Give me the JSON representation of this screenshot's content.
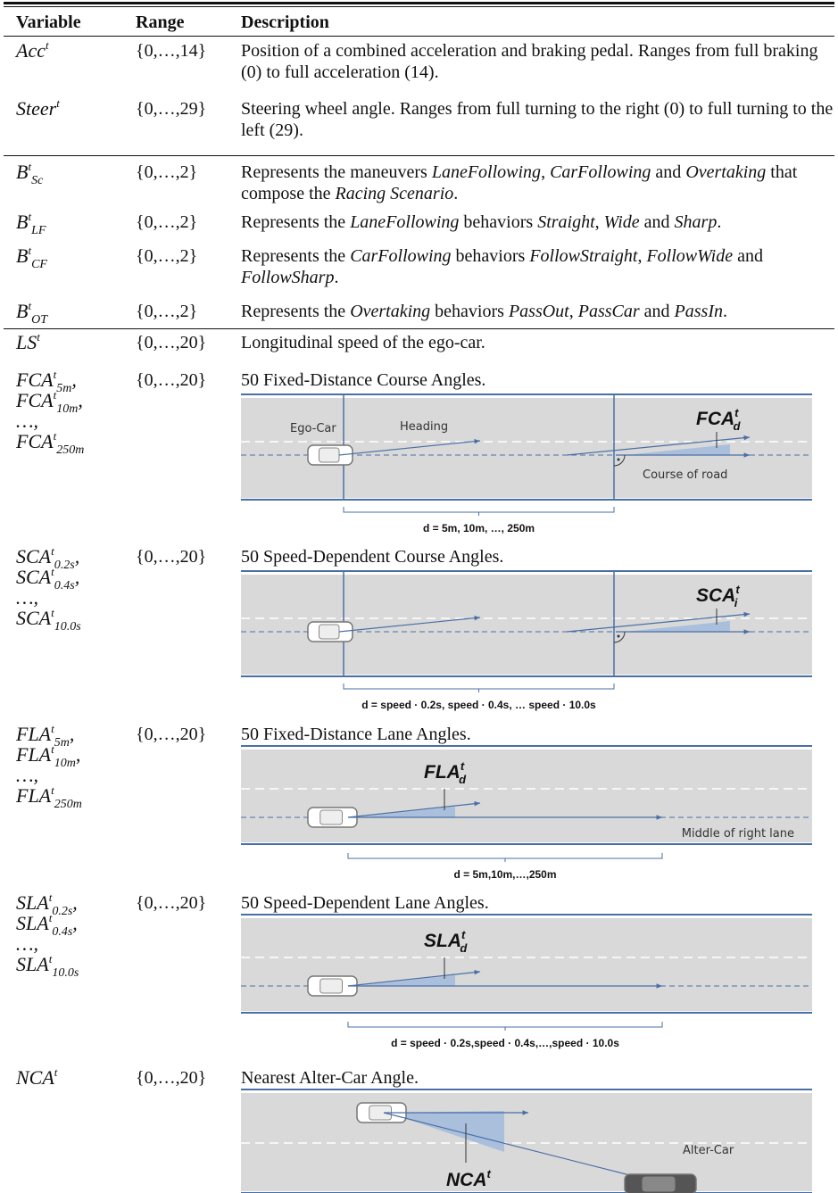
{
  "header": {
    "variable": "Variable",
    "range": "Range",
    "description": "Description"
  },
  "rows": [
    {
      "variable": [
        {
          "base": "Acc",
          "sup": "t"
        }
      ],
      "range": "{0,…,14}",
      "description": [
        {
          "text": "Position of a combined acceleration and braking pedal. Ranges from full braking (0) to full acceleration (14)."
        }
      ]
    },
    {
      "variable": [
        {
          "base": "Steer",
          "sup": "t"
        }
      ],
      "range": "{0,…,29}",
      "description": [
        {
          "text": "Steering wheel angle. Ranges from full turning to the right (0) to full turning to the left (29)."
        }
      ]
    },
    {
      "variable": [
        {
          "base": "B",
          "sup": "t",
          "sub": "Sc"
        }
      ],
      "range": "{0,…,2}",
      "description": [
        {
          "text": "Represents the maneuvers "
        },
        {
          "text": "LaneFollowing",
          "italic": true
        },
        {
          "text": ", "
        },
        {
          "text": "CarFollowing",
          "italic": true
        },
        {
          "text": " and "
        },
        {
          "text": "Overtaking",
          "italic": true
        },
        {
          "text": " that compose the "
        },
        {
          "text": "Racing Scenario",
          "italic": true
        },
        {
          "text": "."
        }
      ]
    },
    {
      "variable": [
        {
          "base": "B",
          "sup": "t",
          "sub": "LF"
        }
      ],
      "range": "{0,…,2}",
      "description": [
        {
          "text": "Represents the "
        },
        {
          "text": "LaneFollowing",
          "italic": true
        },
        {
          "text": " behaviors "
        },
        {
          "text": "Straight",
          "italic": true
        },
        {
          "text": ", "
        },
        {
          "text": "Wide",
          "italic": true
        },
        {
          "text": " and "
        },
        {
          "text": "Sharp",
          "italic": true
        },
        {
          "text": "."
        }
      ]
    },
    {
      "variable": [
        {
          "base": "B",
          "sup": "t",
          "sub": "CF"
        }
      ],
      "range": "{0,…,2}",
      "description": [
        {
          "text": "Represents the "
        },
        {
          "text": "CarFollowing",
          "italic": true
        },
        {
          "text": " behaviors "
        },
        {
          "text": "FollowStraight",
          "italic": true
        },
        {
          "text": ", "
        },
        {
          "text": "FollowWide",
          "italic": true
        },
        {
          "text": " and "
        },
        {
          "text": "FollowSharp",
          "italic": true
        },
        {
          "text": "."
        }
      ]
    },
    {
      "variable": [
        {
          "base": "B",
          "sup": "t",
          "sub": "OT"
        }
      ],
      "range": "{0,…,2}",
      "description": [
        {
          "text": "Represents the "
        },
        {
          "text": "Overtaking",
          "italic": true
        },
        {
          "text": " behaviors "
        },
        {
          "text": "PassOut",
          "italic": true
        },
        {
          "text": ", "
        },
        {
          "text": "PassCar",
          "italic": true
        },
        {
          "text": " and "
        },
        {
          "text": "PassIn",
          "italic": true
        },
        {
          "text": "."
        }
      ]
    },
    {
      "variable": [
        {
          "base": "LS",
          "sup": "t"
        }
      ],
      "range": "{0,…,20}",
      "description": [
        {
          "text": "Longitudinal speed of the ego-car."
        }
      ]
    },
    {
      "variable": [
        {
          "base": "FCA",
          "sup": "t",
          "sub": "5m",
          "tail": ","
        },
        {
          "base": "FCA",
          "sup": "t",
          "sub": "10m",
          "tail": ","
        },
        {
          "base": "…,"
        },
        {
          "base": "FCA",
          "sup": "t",
          "sub": "250m"
        }
      ],
      "range": "{0,…,20}",
      "description": [
        {
          "text": "50 Fixed-Distance Course Angles."
        }
      ],
      "diagram": {
        "kind": "course",
        "ego": "Ego-Car",
        "heading": "Heading",
        "angle": {
          "base": "FCA",
          "sup": "t",
          "sub": "d"
        },
        "road": "Course of road",
        "distance": "d = 5m, 10m, …, 250m"
      }
    },
    {
      "variable": [
        {
          "base": "SCA",
          "sup": "t",
          "sub": "0.2s",
          "tail": ","
        },
        {
          "base": "SCA",
          "sup": "t",
          "sub": "0.4s",
          "tail": ","
        },
        {
          "base": "…,"
        },
        {
          "base": "SCA",
          "sup": "t",
          "sub": "10.0s"
        }
      ],
      "range": "{0,…,20}",
      "description": [
        {
          "text": "50 Speed-Dependent Course Angles."
        }
      ],
      "diagram": {
        "kind": "course",
        "angle": {
          "base": "SCA",
          "sup": "t",
          "sub": "i"
        },
        "distance": "d = speed · 0.2s, speed · 0.4s, … speed · 10.0s"
      }
    },
    {
      "variable": [
        {
          "base": "FLA",
          "sup": "t",
          "sub": "5m",
          "tail": ","
        },
        {
          "base": "FLA",
          "sup": "t",
          "sub": "10m",
          "tail": ","
        },
        {
          "base": "…,"
        },
        {
          "base": "FLA",
          "sup": "t",
          "sub": "250m"
        }
      ],
      "range": "{0,…,20}",
      "description": [
        {
          "text": "50 Fixed-Distance Lane Angles."
        }
      ],
      "diagram": {
        "kind": "lane",
        "angle": {
          "base": "FLA",
          "sup": "t",
          "sub": "d"
        },
        "lane": "Middle of right lane",
        "distance": "d = 5m,10m,…,250m"
      }
    },
    {
      "variable": [
        {
          "base": "SLA",
          "sup": "t",
          "sub": "0.2s",
          "tail": ","
        },
        {
          "base": "SLA",
          "sup": "t",
          "sub": "0.4s",
          "tail": ","
        },
        {
          "base": "…,"
        },
        {
          "base": "SLA",
          "sup": "t",
          "sub": "10.0s"
        }
      ],
      "range": "{0,…,20}",
      "description": [
        {
          "text": "50 Speed-Dependent Lane Angles."
        }
      ],
      "diagram": {
        "kind": "lane",
        "angle": {
          "base": "SLA",
          "sup": "t",
          "sub": "d"
        },
        "distance": "d = speed · 0.2s,speed · 0.4s,…,speed · 10.0s"
      }
    },
    {
      "variable": [
        {
          "base": "NCA",
          "sup": "t"
        }
      ],
      "range": "{0,…,20}",
      "description": [
        {
          "text": "Nearest Alter-Car Angle."
        }
      ],
      "diagram": {
        "kind": "nearest",
        "angle": {
          "base": "NCA",
          "sup": "t"
        },
        "alter": "Alter-Car"
      }
    }
  ]
}
